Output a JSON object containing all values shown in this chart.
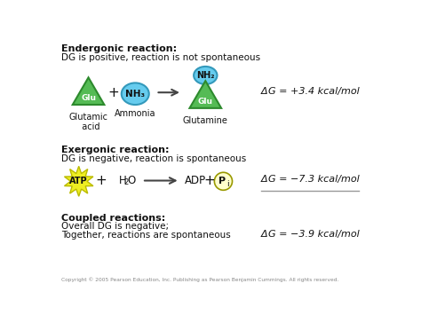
{
  "bg_color": "#ffffff",
  "section1_title": "Endergonic reaction:",
  "section1_sub": "DG is positive, reaction is not spontaneous",
  "section2_title": "Exergonic reaction:",
  "section2_sub": "DG is negative, reaction is spontaneous",
  "section3_title": "Coupled reactions:",
  "section3_sub1": "Overall DG is negative;",
  "section3_sub2": "Together, reactions are spontaneous",
  "dg1": "ΔG = +3.4 kcal/mol",
  "dg2": "ΔG = -7.3 kcal/mol",
  "dg3": "ΔG = -3.9 kcal/mol",
  "copyright": "Copyright © 2005 Pearson Education, Inc. Publishing as Pearson Benjamin Cummings. All rights reserved.",
  "green_color": "#55bb55",
  "green_edge": "#2d8a2d",
  "cyan_color": "#66ccee",
  "cyan_edge": "#3399bb",
  "yellow_color": "#eeee22",
  "yellow_edge": "#bbbb00",
  "pi_fill": "#ffffcc",
  "pi_edge": "#999900",
  "text_color": "#111111",
  "arrow_color": "#444444",
  "line_color": "#999999"
}
